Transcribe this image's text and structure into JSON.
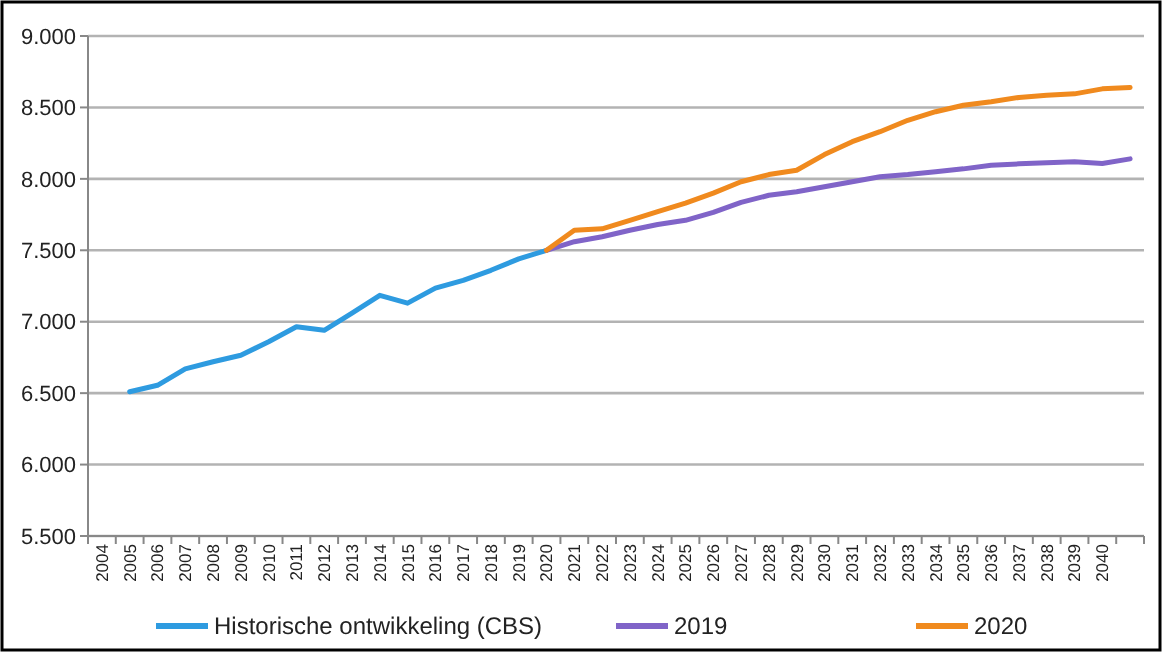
{
  "chart_data": {
    "type": "line",
    "categories": [
      "2004",
      "2005",
      "2006",
      "2007",
      "2008",
      "2009",
      "2010",
      "2011",
      "2012",
      "2013",
      "2014",
      "2015",
      "2016",
      "2017",
      "2018",
      "2019",
      "2020",
      "2021",
      "2022",
      "2023",
      "2024",
      "2025",
      "2026",
      "2027",
      "2028",
      "2029",
      "2030",
      "2031",
      "2032",
      "2033",
      "2034",
      "2035",
      "2036",
      "2037",
      "2038",
      "2039",
      "2040",
      null
    ],
    "series": [
      {
        "name": "Historische ontwikkeling (CBS)",
        "color": "#2e9be0",
        "values": [
          null,
          6510,
          6555,
          6670,
          6720,
          6765,
          6860,
          6965,
          6940,
          7060,
          7185,
          7130,
          7235,
          7290,
          7360,
          7440,
          7500,
          null,
          null,
          null,
          null,
          null,
          null,
          null,
          null,
          null,
          null,
          null,
          null,
          null,
          null,
          null,
          null,
          null,
          null,
          null,
          null,
          null
        ]
      },
      {
        "name": "2019",
        "color": "#8064c8",
        "values": [
          null,
          null,
          null,
          null,
          null,
          null,
          null,
          null,
          null,
          null,
          null,
          null,
          null,
          null,
          null,
          null,
          7500,
          7560,
          7595,
          7640,
          7680,
          7710,
          7765,
          7835,
          7885,
          7910,
          7945,
          7980,
          8015,
          8030,
          8050,
          8070,
          8095,
          8105,
          8112,
          8120,
          8108,
          8140
        ]
      },
      {
        "name": "2020",
        "color": "#f08a1e",
        "values": [
          null,
          null,
          null,
          null,
          null,
          null,
          null,
          null,
          null,
          null,
          null,
          null,
          null,
          null,
          null,
          null,
          7500,
          7640,
          7650,
          7710,
          7770,
          7830,
          7900,
          7980,
          8030,
          8060,
          8170,
          8260,
          8330,
          8410,
          8470,
          8515,
          8540,
          8570,
          8585,
          8595,
          8630,
          8640
        ]
      }
    ],
    "ylim": [
      5500,
      9000
    ],
    "yticks": [
      {
        "value": 5500,
        "label": "5.500"
      },
      {
        "value": 6000,
        "label": "6.000"
      },
      {
        "value": 6500,
        "label": "6.500"
      },
      {
        "value": 7000,
        "label": "7.000"
      },
      {
        "value": 7500,
        "label": "7.500"
      },
      {
        "value": 8000,
        "label": "8.000"
      },
      {
        "value": 8500,
        "label": "8.500"
      },
      {
        "value": 9000,
        "label": "9.000"
      }
    ],
    "grid": "y",
    "legend": "bottom",
    "marker": "none",
    "line_style": "solid"
  }
}
